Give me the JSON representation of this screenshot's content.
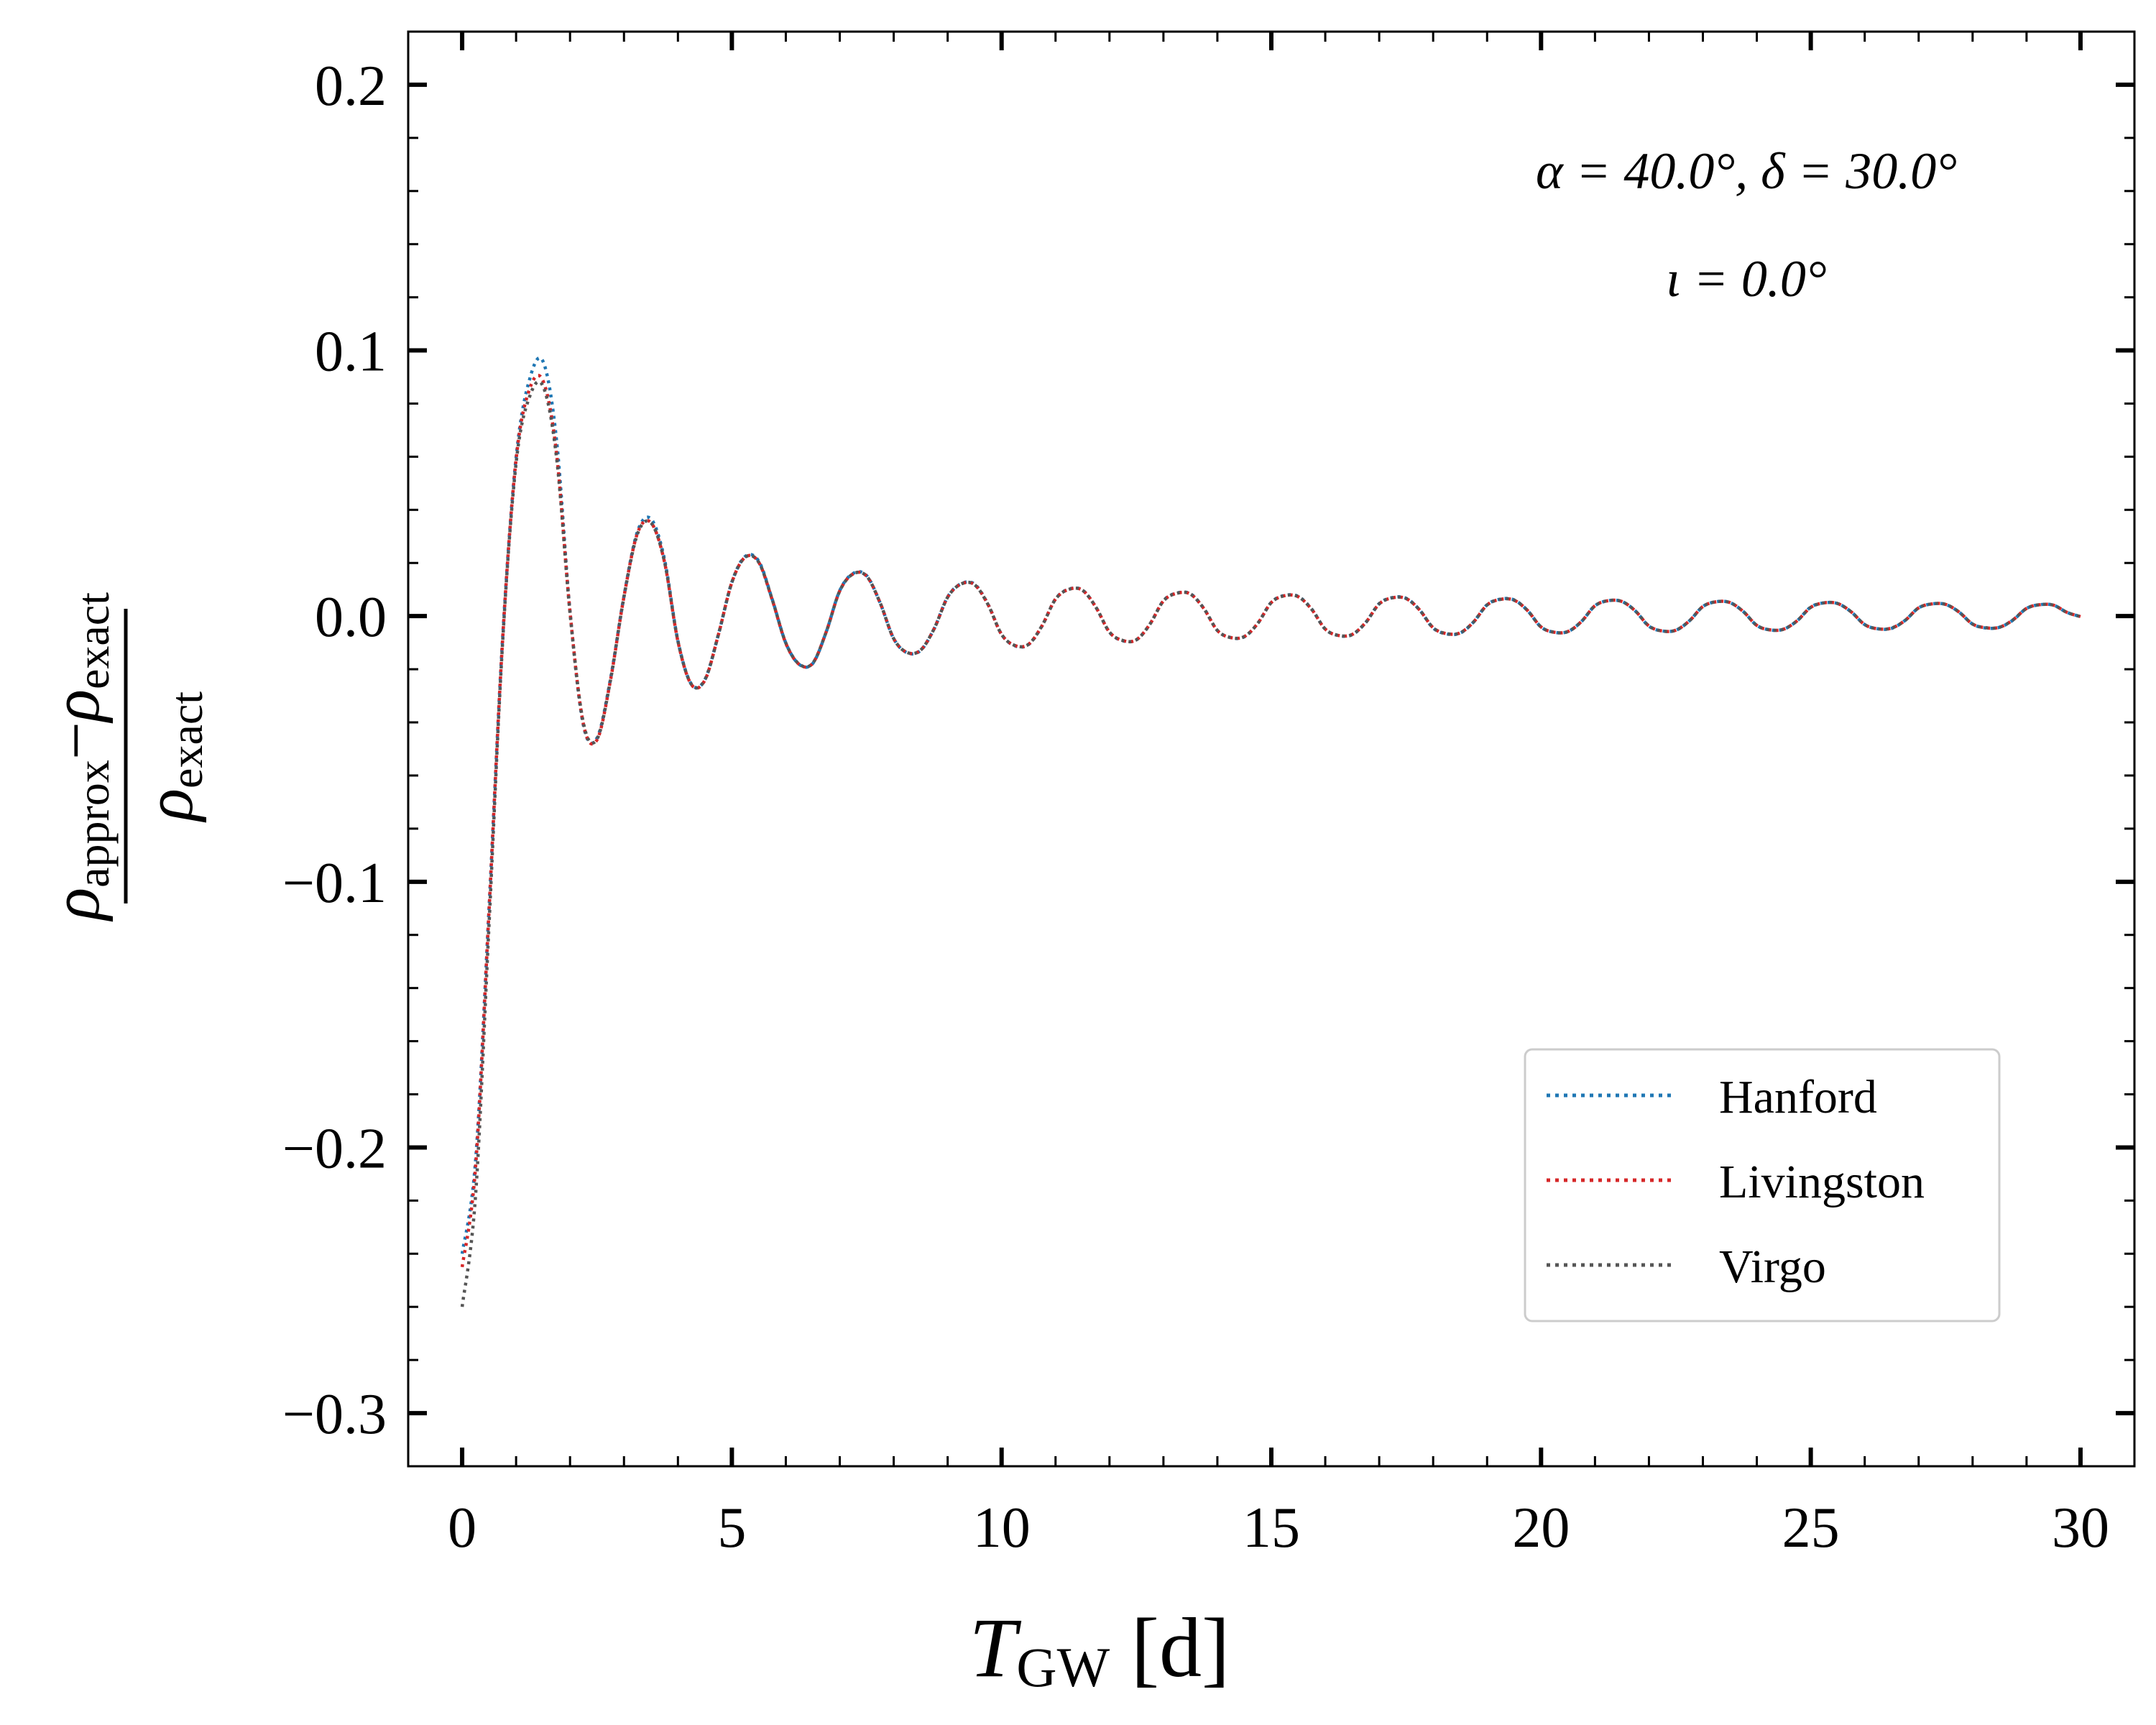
{
  "chart_data": {
    "type": "line",
    "xlabel": "T_GW [d]",
    "xlabel_main": "T",
    "xlabel_sub": "GW",
    "xlabel_unit": " [d]",
    "ylabel": "(ρ_approx − ρ_exact) / ρ_exact",
    "ylabel_num_a": "ρ",
    "ylabel_num_a_sub": "approx",
    "ylabel_minus": "−",
    "ylabel_num_b": "ρ",
    "ylabel_num_b_sub": "exact",
    "ylabel_den": "ρ",
    "ylabel_den_sub": "exact",
    "xlim": [
      -1,
      31
    ],
    "ylim": [
      -0.32,
      0.22
    ],
    "xticks": [
      0,
      5,
      10,
      15,
      20,
      25,
      30
    ],
    "xtick_labels": [
      "0",
      "5",
      "10",
      "15",
      "20",
      "25",
      "30"
    ],
    "yticks": [
      -0.3,
      -0.2,
      -0.1,
      0.0,
      0.1,
      0.2
    ],
    "ytick_labels": [
      "−0.3",
      "−0.2",
      "−0.1",
      "0.0",
      "0.1",
      "0.2"
    ],
    "annotations": [
      "α = 40.0°, δ = 30.0°",
      "ι = 0.0°"
    ],
    "legend_position": "lower-right",
    "grid": false,
    "series": [
      {
        "name": "Hanford",
        "color": "#1f77b4",
        "x": [
          0,
          0.25,
          0.5,
          0.75,
          1.0,
          1.25,
          1.5,
          1.75,
          2.0,
          2.25,
          2.5,
          2.75,
          3.0,
          3.25,
          3.5,
          3.75,
          4.0,
          4.25,
          4.5,
          4.75,
          5.0,
          5.25,
          5.5,
          5.75,
          6.0,
          6.25,
          6.5,
          6.75,
          7.0,
          7.25,
          7.5,
          7.75,
          8.0,
          8.25,
          8.5,
          8.75,
          9.0,
          9.25,
          9.5,
          9.75,
          10.0,
          10.25,
          10.5,
          10.75,
          11.0,
          11.25,
          11.5,
          11.75,
          12.0,
          12.25,
          12.5,
          12.75,
          13.0,
          13.25,
          13.5,
          13.75,
          14.0,
          14.25,
          14.5,
          14.75,
          15.0,
          15.25,
          15.5,
          15.75,
          16.0,
          16.25,
          16.5,
          16.75,
          17.0,
          17.25,
          17.5,
          17.75,
          18.0,
          18.25,
          18.5,
          18.75,
          19.0,
          19.25,
          19.5,
          19.75,
          20.0,
          20.25,
          20.5,
          20.75,
          21.0,
          21.25,
          21.5,
          21.75,
          22.0,
          22.25,
          22.5,
          22.75,
          23.0,
          23.25,
          23.5,
          23.75,
          24.0,
          24.25,
          24.5,
          24.75,
          25.0,
          25.25,
          25.5,
          25.75,
          26.0,
          26.25,
          26.5,
          26.75,
          27.0,
          27.25,
          27.5,
          27.75,
          28.0,
          28.25,
          28.5,
          28.75,
          29.0,
          29.25,
          29.5,
          29.75,
          30.0
        ],
        "y": [
          -0.24,
          -0.2047,
          -0.1093,
          -0.0081,
          0.0596,
          0.0891,
          0.0958,
          0.0662,
          0.0017,
          -0.0414,
          -0.0459,
          -0.0236,
          0.0076,
          0.0318,
          0.0366,
          0.0215,
          -0.0093,
          -0.0256,
          -0.0239,
          -0.0069,
          0.0128,
          0.0225,
          0.0206,
          0.0062,
          -0.0101,
          -0.0182,
          -0.0178,
          -0.0059,
          0.0096,
          0.0161,
          0.0152,
          0.0049,
          -0.0085,
          -0.0138,
          -0.0129,
          -0.0047,
          0.0072,
          0.0122,
          0.012,
          0.0044,
          -0.0069,
          -0.0112,
          -0.0107,
          -0.0037,
          0.0065,
          0.0102,
          0.0098,
          0.0033,
          -0.0061,
          -0.0093,
          -0.0089,
          -0.003,
          0.0058,
          0.0087,
          0.0084,
          0.0029,
          -0.0054,
          -0.0081,
          -0.0078,
          -0.0027,
          0.0052,
          0.0078,
          0.0074,
          0.0026,
          -0.0049,
          -0.0073,
          -0.007,
          -0.0024,
          0.0047,
          0.007,
          0.0067,
          0.0023,
          -0.0045,
          -0.0067,
          -0.0064,
          -0.0022,
          0.0043,
          0.0064,
          0.0061,
          0.0021,
          -0.0041,
          -0.0061,
          -0.0058,
          -0.002,
          0.0039,
          0.0058,
          0.0055,
          0.0019,
          -0.0038,
          -0.0056,
          -0.0053,
          -0.0018,
          0.0036,
          0.0054,
          0.0051,
          0.0017,
          -0.0035,
          -0.0052,
          -0.0049,
          -0.0017,
          0.0034,
          0.005,
          0.0047,
          0.0016,
          -0.0032,
          -0.0048,
          -0.0046,
          -0.0016,
          0.0031,
          0.0046,
          0.0044,
          0.0015,
          -0.003,
          -0.0045,
          -0.0042,
          -0.0015,
          0.0029,
          0.0043,
          0.0041,
          0.0014,
          -0.0002
        ]
      },
      {
        "name": "Livingston",
        "color": "#d62728",
        "x": [
          0,
          0.25,
          0.5,
          0.75,
          1.0,
          1.25,
          1.5,
          1.75,
          2.0,
          2.25,
          2.5,
          2.75,
          3.0,
          3.25,
          3.5,
          3.75,
          4.0,
          4.25,
          4.5,
          4.75,
          5.0,
          5.25,
          5.5,
          5.75,
          6.0,
          6.25,
          6.5,
          6.75,
          7.0,
          7.25,
          7.5,
          7.75,
          8.0,
          8.25,
          8.5,
          8.75,
          9.0,
          9.25,
          9.5,
          9.75,
          10.0,
          10.25,
          10.5,
          10.75,
          11.0,
          11.25,
          11.5,
          11.75,
          12.0,
          12.25,
          12.5,
          12.75,
          13.0,
          13.25,
          13.5,
          13.75,
          14.0,
          14.25,
          14.5,
          14.75,
          15.0,
          15.25,
          15.5,
          15.75,
          16.0,
          16.25,
          16.5,
          16.75,
          17.0,
          17.25,
          17.5,
          17.75,
          18.0,
          18.25,
          18.5,
          18.75,
          19.0,
          19.25,
          19.5,
          19.75,
          20.0,
          20.25,
          20.5,
          20.75,
          21.0,
          21.25,
          21.5,
          21.75,
          22.0,
          22.25,
          22.5,
          22.75,
          23.0,
          23.25,
          23.5,
          23.75,
          24.0,
          24.25,
          24.5,
          24.75,
          25.0,
          25.25,
          25.5,
          25.75,
          26.0,
          26.25,
          26.5,
          26.75,
          27.0,
          27.25,
          27.5,
          27.75,
          28.0,
          28.25,
          28.5,
          28.75,
          29.0,
          29.25,
          29.5,
          29.75,
          30.0
        ],
        "y": [
          -0.245,
          -0.2072,
          -0.1103,
          -0.0089,
          0.0589,
          0.0855,
          0.0885,
          0.0612,
          0.0015,
          -0.0409,
          -0.0466,
          -0.0241,
          0.0074,
          0.0312,
          0.0352,
          0.0205,
          -0.0095,
          -0.0258,
          -0.0241,
          -0.007,
          0.0127,
          0.0222,
          0.0202,
          0.006,
          -0.0102,
          -0.0182,
          -0.0177,
          -0.0059,
          0.0095,
          0.0159,
          0.015,
          0.0049,
          -0.0085,
          -0.0137,
          -0.0128,
          -0.0047,
          0.0071,
          0.0121,
          0.0118,
          0.0043,
          -0.0069,
          -0.0111,
          -0.0106,
          -0.0036,
          0.0064,
          0.0101,
          0.0097,
          0.0033,
          -0.006,
          -0.0092,
          -0.0089,
          -0.003,
          0.0057,
          0.0086,
          0.0083,
          0.0028,
          -0.0054,
          -0.0081,
          -0.0077,
          -0.0027,
          0.0051,
          0.0077,
          0.0073,
          0.0025,
          -0.0049,
          -0.0073,
          -0.0069,
          -0.0024,
          0.0046,
          0.0069,
          0.0066,
          0.0023,
          -0.0044,
          -0.0066,
          -0.0063,
          -0.0022,
          0.0042,
          0.0063,
          0.006,
          0.0021,
          -0.0041,
          -0.0061,
          -0.0058,
          -0.002,
          0.0039,
          0.0058,
          0.0055,
          0.0019,
          -0.0037,
          -0.0056,
          -0.0053,
          -0.0018,
          0.0036,
          0.0054,
          0.0051,
          0.0017,
          -0.0035,
          -0.0052,
          -0.0049,
          -0.0017,
          0.0033,
          0.005,
          0.0047,
          0.0016,
          -0.0032,
          -0.0048,
          -0.0045,
          -0.0016,
          0.0031,
          0.0046,
          0.0044,
          0.0015,
          -0.003,
          -0.0044,
          -0.0042,
          -0.0014,
          0.0029,
          0.0043,
          0.0041,
          0.0014,
          -0.0002
        ]
      },
      {
        "name": "Virgo",
        "color": "#555555",
        "x": [
          0,
          0.25,
          0.5,
          0.75,
          1.0,
          1.25,
          1.5,
          1.75,
          2.0,
          2.25,
          2.5,
          2.75,
          3.0,
          3.25,
          3.5,
          3.75,
          4.0,
          4.25,
          4.5,
          4.75,
          5.0,
          5.25,
          5.5,
          5.75,
          6.0,
          6.25,
          6.5,
          6.75,
          7.0,
          7.25,
          7.5,
          7.75,
          8.0,
          8.25,
          8.5,
          8.75,
          9.0,
          9.25,
          9.5,
          9.75,
          10.0,
          10.25,
          10.5,
          10.75,
          11.0,
          11.25,
          11.5,
          11.75,
          12.0,
          12.25,
          12.5,
          12.75,
          13.0,
          13.25,
          13.5,
          13.75,
          14.0,
          14.25,
          14.5,
          14.75,
          15.0,
          15.25,
          15.5,
          15.75,
          16.0,
          16.25,
          16.5,
          16.75,
          17.0,
          17.25,
          17.5,
          17.75,
          18.0,
          18.25,
          18.5,
          18.75,
          19.0,
          19.25,
          19.5,
          19.75,
          20.0,
          20.25,
          20.5,
          20.75,
          21.0,
          21.25,
          21.5,
          21.75,
          22.0,
          22.25,
          22.5,
          22.75,
          23.0,
          23.25,
          23.5,
          23.75,
          24.0,
          24.25,
          24.5,
          24.75,
          25.0,
          25.25,
          25.5,
          25.75,
          26.0,
          26.25,
          26.5,
          26.75,
          27.0,
          27.25,
          27.5,
          27.75,
          28.0,
          28.25,
          28.5,
          28.75,
          29.0,
          29.25,
          29.5,
          29.75,
          30.0
        ],
        "y": [
          -0.26,
          -0.2178,
          -0.1154,
          -0.0098,
          0.0575,
          0.0826,
          0.0865,
          0.0597,
          0.0011,
          -0.0405,
          -0.0463,
          -0.0241,
          0.0073,
          0.0309,
          0.0351,
          0.0206,
          -0.0094,
          -0.0257,
          -0.024,
          -0.007,
          0.0127,
          0.0222,
          0.0202,
          0.0061,
          -0.0101,
          -0.0181,
          -0.0177,
          -0.0059,
          0.0095,
          0.0159,
          0.015,
          0.0049,
          -0.0085,
          -0.0137,
          -0.0128,
          -0.0047,
          0.0071,
          0.0121,
          0.0118,
          0.0043,
          -0.0069,
          -0.0111,
          -0.0106,
          -0.0036,
          0.0064,
          0.0101,
          0.0097,
          0.0033,
          -0.006,
          -0.0092,
          -0.0089,
          -0.003,
          0.0057,
          0.0086,
          0.0083,
          0.0028,
          -0.0054,
          -0.0081,
          -0.0077,
          -0.0027,
          0.0051,
          0.0077,
          0.0073,
          0.0025,
          -0.0049,
          -0.0073,
          -0.0069,
          -0.0024,
          0.0046,
          0.0069,
          0.0066,
          0.0023,
          -0.0044,
          -0.0066,
          -0.0063,
          -0.0022,
          0.0042,
          0.0063,
          0.006,
          0.0021,
          -0.0041,
          -0.0061,
          -0.0058,
          -0.002,
          0.0039,
          0.0058,
          0.0055,
          0.0019,
          -0.0037,
          -0.0056,
          -0.0053,
          -0.0018,
          0.0036,
          0.0054,
          0.0051,
          0.0017,
          -0.0035,
          -0.0052,
          -0.0049,
          -0.0017,
          0.0033,
          0.005,
          0.0047,
          0.0016,
          -0.0032,
          -0.0048,
          -0.0045,
          -0.0016,
          0.0031,
          0.0046,
          0.0044,
          0.0015,
          -0.003,
          -0.0044,
          -0.0042,
          -0.0014,
          0.0029,
          0.0043,
          0.0041,
          0.0014,
          -0.0002
        ]
      }
    ]
  }
}
